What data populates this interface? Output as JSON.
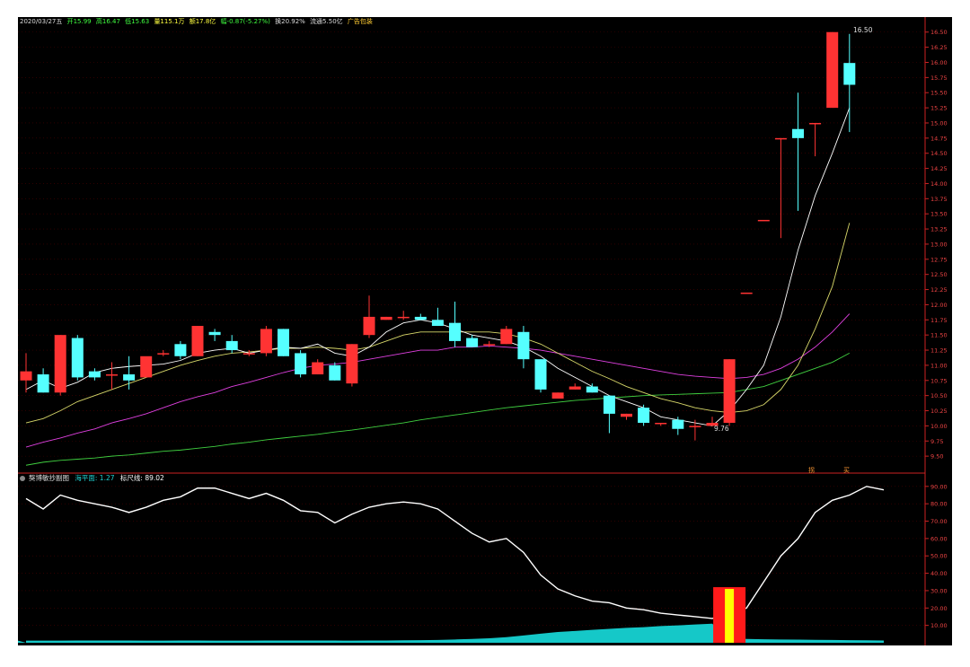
{
  "header": {
    "date": "2020/03/27五",
    "open": "开15.99",
    "high": "高16.47",
    "low": "低15.63",
    "volume": "量115.1万",
    "amount": "额17.8亿",
    "change": "幅-0.87(-5.27%)",
    "turnover": "换20.92%",
    "float": "流通5.50亿",
    "tag": "广告包装"
  },
  "indicator": {
    "name": "獒博敏抄副图",
    "sea_label": "海平面: 1.27",
    "ruler_label": "标尺线: 89.02"
  },
  "markers": {
    "high_label": "16.50",
    "low_label": "9.76",
    "sig1": "拐",
    "sig2": "买"
  },
  "colors": {
    "up": "#ff3333",
    "down": "#55ffff",
    "ma5": "#ffffff",
    "ma10": "#d8d86a",
    "ma20": "#e040e0",
    "ma60": "#40d040",
    "grid": "#4a0000",
    "axis": "#cc2222",
    "sea": "#15c8c8",
    "signal_red": "#ff1a1a",
    "signal_yellow": "#ffff00"
  },
  "chart_data": [
    {
      "type": "candlestick",
      "ylim": [
        9.25,
        16.6
      ],
      "yticks": [
        "9.50",
        "9.75",
        "10.00",
        "10.25",
        "10.50",
        "10.75",
        "11.00",
        "11.25",
        "11.50",
        "11.75",
        "12.00",
        "12.25",
        "12.50",
        "12.75",
        "13.00",
        "13.25",
        "13.50",
        "13.75",
        "14.00",
        "14.25",
        "14.50",
        "14.75",
        "15.00",
        "15.25",
        "15.50",
        "15.75",
        "16.00",
        "16.25",
        "16.50"
      ],
      "candles": [
        {
          "o": 10.75,
          "h": 11.2,
          "l": 10.55,
          "c": 10.9
        },
        {
          "o": 10.85,
          "h": 10.95,
          "l": 10.55,
          "c": 10.55
        },
        {
          "o": 10.55,
          "h": 11.5,
          "l": 10.5,
          "c": 11.5
        },
        {
          "o": 11.45,
          "h": 11.5,
          "l": 10.75,
          "c": 10.8
        },
        {
          "o": 10.9,
          "h": 10.95,
          "l": 10.75,
          "c": 10.8
        },
        {
          "o": 10.85,
          "h": 11.05,
          "l": 10.6,
          "c": 10.85
        },
        {
          "o": 10.85,
          "h": 11.15,
          "l": 10.6,
          "c": 10.75
        },
        {
          "o": 10.8,
          "h": 11.1,
          "l": 10.8,
          "c": 11.15
        },
        {
          "o": 11.2,
          "h": 11.25,
          "l": 11.15,
          "c": 11.2
        },
        {
          "o": 11.35,
          "h": 11.4,
          "l": 11.1,
          "c": 11.15
        },
        {
          "o": 11.15,
          "h": 11.65,
          "l": 11.15,
          "c": 11.65
        },
        {
          "o": 11.55,
          "h": 11.6,
          "l": 11.4,
          "c": 11.5
        },
        {
          "o": 11.4,
          "h": 11.5,
          "l": 11.2,
          "c": 11.25
        },
        {
          "o": 11.2,
          "h": 11.25,
          "l": 11.15,
          "c": 11.2
        },
        {
          "o": 11.2,
          "h": 11.65,
          "l": 11.15,
          "c": 11.6
        },
        {
          "o": 11.6,
          "h": 11.6,
          "l": 11.15,
          "c": 11.15
        },
        {
          "o": 11.2,
          "h": 11.25,
          "l": 10.8,
          "c": 10.85
        },
        {
          "o": 10.85,
          "h": 11.1,
          "l": 10.85,
          "c": 11.05
        },
        {
          "o": 11.0,
          "h": 11.05,
          "l": 10.75,
          "c": 10.75
        },
        {
          "o": 10.7,
          "h": 11.35,
          "l": 10.65,
          "c": 11.35
        },
        {
          "o": 11.5,
          "h": 12.15,
          "l": 11.45,
          "c": 11.8
        },
        {
          "o": 11.75,
          "h": 11.8,
          "l": 11.75,
          "c": 11.8
        },
        {
          "o": 11.8,
          "h": 11.9,
          "l": 11.75,
          "c": 11.8
        },
        {
          "o": 11.8,
          "h": 11.85,
          "l": 11.75,
          "c": 11.75
        },
        {
          "o": 11.75,
          "h": 11.95,
          "l": 11.65,
          "c": 11.65
        },
        {
          "o": 11.7,
          "h": 12.05,
          "l": 11.3,
          "c": 11.4
        },
        {
          "o": 11.45,
          "h": 11.5,
          "l": 11.3,
          "c": 11.3
        },
        {
          "o": 11.35,
          "h": 11.4,
          "l": 11.3,
          "c": 11.35
        },
        {
          "o": 11.35,
          "h": 11.65,
          "l": 11.35,
          "c": 11.6
        },
        {
          "o": 11.55,
          "h": 11.65,
          "l": 10.95,
          "c": 11.1
        },
        {
          "o": 11.1,
          "h": 11.1,
          "l": 10.55,
          "c": 10.6
        },
        {
          "o": 10.45,
          "h": 10.55,
          "l": 10.45,
          "c": 10.55
        },
        {
          "o": 10.6,
          "h": 10.7,
          "l": 10.6,
          "c": 10.65
        },
        {
          "o": 10.65,
          "h": 10.7,
          "l": 10.55,
          "c": 10.55
        },
        {
          "o": 10.5,
          "h": 10.5,
          "l": 9.88,
          "c": 10.2
        },
        {
          "o": 10.15,
          "h": 10.2,
          "l": 10.1,
          "c": 10.2
        },
        {
          "o": 10.3,
          "h": 10.35,
          "l": 10.0,
          "c": 10.05
        },
        {
          "o": 10.05,
          "h": 10.05,
          "l": 10.0,
          "c": 10.05
        },
        {
          "o": 10.1,
          "h": 10.15,
          "l": 9.85,
          "c": 9.95
        },
        {
          "o": 10.0,
          "h": 10.1,
          "l": 9.76,
          "c": 10.0
        },
        {
          "o": 10.0,
          "h": 10.15,
          "l": 10.0,
          "c": 10.05
        },
        {
          "o": 10.05,
          "h": 11.1,
          "l": 10.0,
          "c": 11.1
        },
        {
          "o": 12.2,
          "h": 12.2,
          "l": 12.2,
          "c": 12.2
        },
        {
          "o": 13.4,
          "h": 13.4,
          "l": 13.4,
          "c": 13.4
        },
        {
          "o": 14.75,
          "h": 14.75,
          "l": 13.1,
          "c": 14.75
        },
        {
          "o": 14.9,
          "h": 15.5,
          "l": 13.55,
          "c": 14.75
        },
        {
          "o": 15.0,
          "h": 15.0,
          "l": 14.45,
          "c": 15.0
        },
        {
          "o": 15.25,
          "h": 16.5,
          "l": 15.25,
          "c": 16.5
        },
        {
          "o": 15.99,
          "h": 16.47,
          "l": 14.85,
          "c": 15.63
        }
      ],
      "ma5": [
        10.6,
        10.75,
        10.62,
        10.72,
        10.88,
        10.95,
        10.98,
        11.0,
        11.02,
        11.08,
        11.2,
        11.25,
        11.28,
        11.2,
        11.25,
        11.3,
        11.28,
        11.35,
        11.2,
        11.15,
        11.3,
        11.55,
        11.7,
        11.75,
        11.7,
        11.6,
        11.5,
        11.45,
        11.4,
        11.3,
        11.15,
        10.95,
        10.8,
        10.65,
        10.5,
        10.4,
        10.3,
        10.15,
        10.1,
        10.05,
        10.0,
        10.25,
        10.6,
        11.0,
        11.8,
        12.9,
        13.8,
        14.5,
        15.25
      ],
      "ma10": [
        10.05,
        10.12,
        10.25,
        10.4,
        10.5,
        10.6,
        10.7,
        10.8,
        10.9,
        11.0,
        11.08,
        11.15,
        11.2,
        11.22,
        11.25,
        11.28,
        11.28,
        11.3,
        11.28,
        11.25,
        11.3,
        11.4,
        11.5,
        11.55,
        11.55,
        11.55,
        11.55,
        11.55,
        11.52,
        11.45,
        11.35,
        11.2,
        11.05,
        10.9,
        10.78,
        10.65,
        10.55,
        10.45,
        10.38,
        10.3,
        10.25,
        10.22,
        10.25,
        10.35,
        10.6,
        11.0,
        11.6,
        12.3,
        13.35
      ],
      "ma20": [
        9.65,
        9.73,
        9.8,
        9.88,
        9.95,
        10.05,
        10.12,
        10.2,
        10.3,
        10.4,
        10.48,
        10.55,
        10.65,
        10.72,
        10.8,
        10.88,
        10.95,
        11.0,
        11.02,
        11.05,
        11.1,
        11.15,
        11.2,
        11.25,
        11.25,
        11.3,
        11.3,
        11.32,
        11.3,
        11.28,
        11.25,
        11.2,
        11.15,
        11.1,
        11.05,
        11.0,
        10.95,
        10.9,
        10.85,
        10.82,
        10.8,
        10.78,
        10.8,
        10.85,
        10.95,
        11.1,
        11.3,
        11.55,
        11.85
      ],
      "ma60": [
        9.35,
        9.4,
        9.43,
        9.45,
        9.47,
        9.5,
        9.52,
        9.55,
        9.58,
        9.6,
        9.63,
        9.66,
        9.7,
        9.73,
        9.77,
        9.8,
        9.83,
        9.86,
        9.9,
        9.93,
        9.97,
        10.01,
        10.05,
        10.1,
        10.14,
        10.18,
        10.22,
        10.26,
        10.3,
        10.33,
        10.36,
        10.39,
        10.42,
        10.44,
        10.46,
        10.48,
        10.5,
        10.51,
        10.52,
        10.53,
        10.54,
        10.55,
        10.6,
        10.65,
        10.75,
        10.85,
        10.95,
        11.05,
        11.2
      ]
    },
    {
      "type": "line",
      "ylim": [
        0,
        93
      ],
      "yticks": [
        "10.00",
        "20.00",
        "30.00",
        "40.00",
        "50.00",
        "60.00",
        "70.00",
        "80.00",
        "90.00"
      ],
      "series": [
        {
          "values": [
            83,
            77,
            85,
            82,
            80,
            78,
            75,
            78,
            82,
            84,
            89,
            89,
            86,
            83,
            86,
            82,
            76,
            75,
            69,
            74,
            78,
            80,
            81,
            80,
            77,
            70,
            63,
            58,
            60,
            52,
            39,
            31,
            27,
            24,
            23,
            20,
            19,
            17,
            16,
            15,
            14,
            16,
            20,
            35,
            50,
            60,
            75,
            82,
            85,
            90,
            88
          ]
        }
      ],
      "sea": [
        1.2,
        1.2,
        1.2,
        1.3,
        1.3,
        1.3,
        1.3,
        1.2,
        1.2,
        1.3,
        1.3,
        1.2,
        1.2,
        1.2,
        1.3,
        1.3,
        1.3,
        1.3,
        1.3,
        1.2,
        1.3,
        1.3,
        1.4,
        1.5,
        1.6,
        1.9,
        2.2,
        2.6,
        3.2,
        4.2,
        5.2,
        6.2,
        6.8,
        7.4,
        8.0,
        8.6,
        9.0,
        9.6,
        10.0,
        10.5,
        11.0,
        2.5,
        2.2,
        2.0,
        1.9,
        1.8,
        1.7,
        1.6,
        1.5,
        1.4,
        1.27
      ],
      "signal": {
        "index": 41,
        "value": 32
      }
    }
  ]
}
